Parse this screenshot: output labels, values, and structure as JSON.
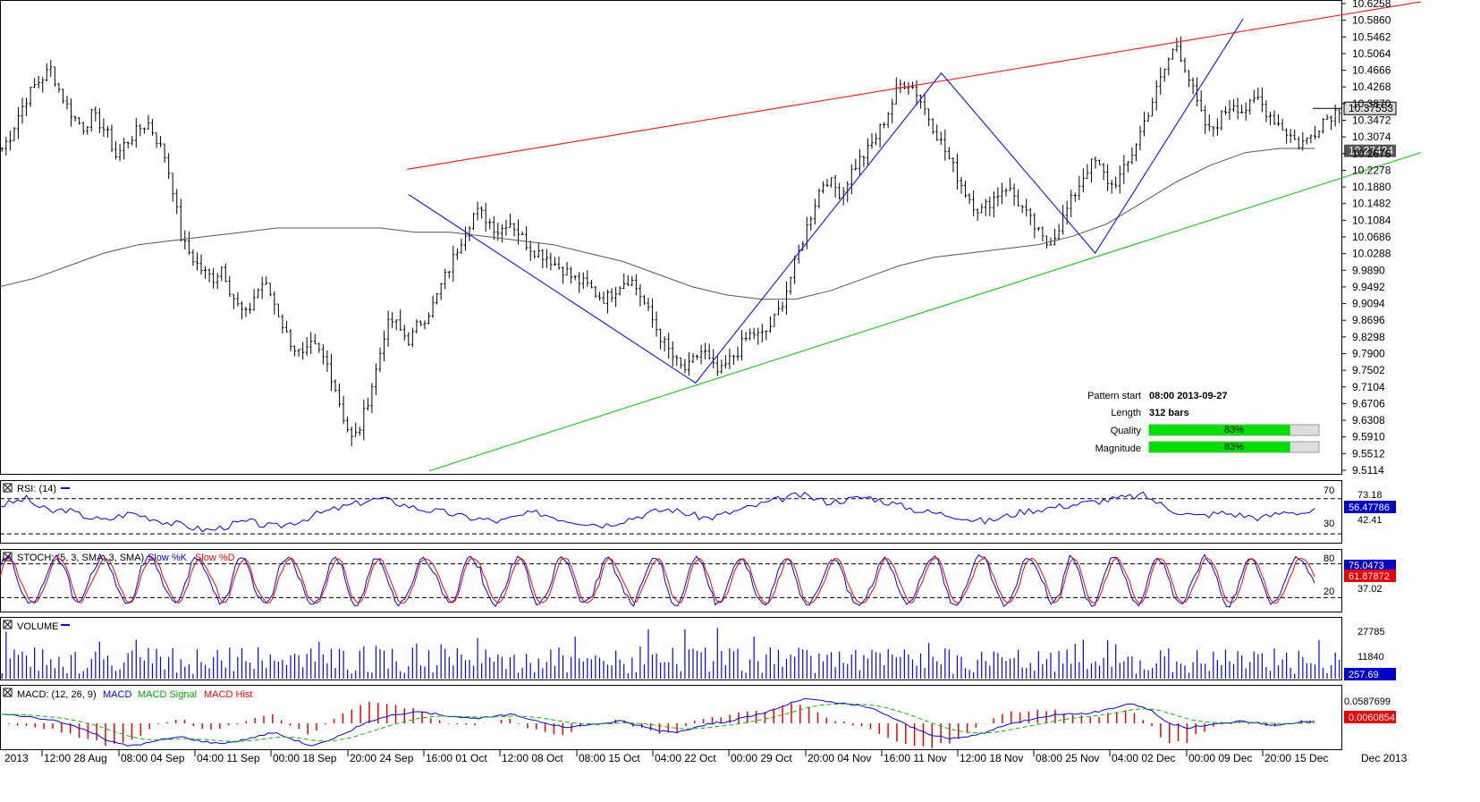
{
  "chart_data": {
    "type": "candlestick",
    "main": {
      "y_ticks": [
        "10.6258",
        "10.5860",
        "10.5462",
        "10.5064",
        "10.4666",
        "10.4268",
        "10.3870",
        "10.3472",
        "10.3074",
        "10.2676",
        "10.2278",
        "10.1880",
        "10.1482",
        "10.1084",
        "10.0686",
        "10.0288",
        "9.9890",
        "9.9492",
        "9.9094",
        "9.8696",
        "9.8298",
        "9.7900",
        "9.7502",
        "9.7104",
        "9.6706",
        "9.6308",
        "9.5910",
        "9.5512",
        "9.5114"
      ],
      "ylim": [
        9.5114,
        10.6258
      ],
      "current_price": "10.37553",
      "ma_value": "10.27424",
      "close_series": [
        10.28,
        10.31,
        10.36,
        10.4,
        10.43,
        10.45,
        10.47,
        10.42,
        10.38,
        10.35,
        10.33,
        10.36,
        10.34,
        10.31,
        10.26,
        10.29,
        10.31,
        10.33,
        10.34,
        10.3,
        10.26,
        10.18,
        10.06,
        10.03,
        10.0,
        9.98,
        9.97,
        10.0,
        9.94,
        9.9,
        9.88,
        9.93,
        9.96,
        9.93,
        9.88,
        9.83,
        9.8,
        9.78,
        9.81,
        9.79,
        9.76,
        9.7,
        9.63,
        9.58,
        9.62,
        9.69,
        9.76,
        9.85,
        9.87,
        9.84,
        9.82,
        9.86,
        9.88,
        9.91,
        9.96,
        10.0,
        10.05,
        10.09,
        10.13,
        10.12,
        10.1,
        10.08,
        10.11,
        10.09,
        10.06,
        10.04,
        10.03,
        10.02,
        10.0,
        9.99,
        9.97,
        9.96,
        9.95,
        9.93,
        9.92,
        9.94,
        9.96,
        9.97,
        9.94,
        9.9,
        9.86,
        9.82,
        9.79,
        9.76,
        9.75,
        9.78,
        9.8,
        9.76,
        9.74,
        9.77,
        9.79,
        9.82,
        9.84,
        9.83,
        9.85,
        9.88,
        9.93,
        9.99,
        10.05,
        10.11,
        10.17,
        10.21,
        10.19,
        10.17,
        10.22,
        10.25,
        10.27,
        10.3,
        10.34,
        10.38,
        10.43,
        10.44,
        10.42,
        10.38,
        10.34,
        10.3,
        10.26,
        10.22,
        10.18,
        10.15,
        10.13,
        10.15,
        10.17,
        10.19,
        10.17,
        10.14,
        10.11,
        10.08,
        10.05,
        10.07,
        10.11,
        10.15,
        10.19,
        10.23,
        10.25,
        10.22,
        10.19,
        10.21,
        10.24,
        10.29,
        10.34,
        10.39,
        10.44,
        10.49,
        10.53,
        10.48,
        10.42,
        10.36,
        10.32,
        10.34,
        10.37,
        10.39,
        10.37,
        10.38,
        10.4,
        10.37,
        10.35,
        10.33,
        10.31,
        10.29,
        10.3,
        10.32,
        10.35,
        10.36,
        10.37553
      ],
      "ma_series": [
        9.95,
        9.97,
        10.0,
        10.03,
        10.05,
        10.06,
        10.07,
        10.08,
        10.09,
        10.09,
        10.09,
        10.09,
        10.08,
        10.08,
        10.07,
        10.06,
        10.05,
        10.03,
        10.01,
        9.98,
        9.95,
        9.93,
        9.92,
        9.92,
        9.94,
        9.97,
        10.0,
        10.02,
        10.03,
        10.04,
        10.05,
        10.07,
        10.1,
        10.15,
        10.2,
        10.24,
        10.27,
        10.28,
        10.28
      ],
      "pattern_upper": {
        "x": [
          0.275,
          0.96
        ],
        "y": [
          10.23,
          10.63
        ]
      },
      "pattern_lower": {
        "x": [
          0.29,
          0.96
        ],
        "y": [
          9.51,
          10.27
        ]
      },
      "zigzag": [
        [
          0.276,
          10.17
        ],
        [
          0.47,
          9.72
        ],
        [
          0.636,
          10.46
        ],
        [
          0.74,
          10.03
        ],
        [
          0.84,
          10.59
        ]
      ],
      "x_ticks": [
        "2013",
        "12:00 28 Aug",
        "08:00 04 Sep",
        "04:00 11 Sep",
        "00:00 18 Sep",
        "20:00 24 Sep",
        "16:00 01 Oct",
        "12:00 08 Oct",
        "08:00 15 Oct",
        "04:00 22 Oct",
        "00:00 29 Oct",
        "20:00 04 Nov",
        "16:00 11 Nov",
        "12:00 18 Nov",
        "08:00 25 Nov",
        "04:00 02 Dec",
        "00:00 09 Dec",
        "20:00 15 Dec",
        "Dec 2013"
      ]
    },
    "pattern_info": {
      "pattern_start_label": "Pattern start",
      "pattern_start_value": "08:00 2013-09-27",
      "length_label": "Length",
      "length_value": "312 bars",
      "quality_label": "Quality",
      "quality_value": "83%",
      "quality_fraction": 0.83,
      "magnitude_label": "Magnitude",
      "magnitude_value": "83%",
      "magnitude_fraction": 0.83
    },
    "rsi": {
      "title": "RSI: (14)",
      "levels": [
        "70",
        "30"
      ],
      "ticks": [
        "73.18",
        "42.41"
      ],
      "current": "56.47786",
      "series": [
        62,
        66,
        70,
        60,
        55,
        58,
        52,
        48,
        45,
        50,
        54,
        50,
        46,
        42,
        40,
        36,
        34,
        38,
        42,
        44,
        40,
        38,
        42,
        46,
        52,
        56,
        60,
        64,
        68,
        70,
        66,
        62,
        58,
        56,
        54,
        50,
        48,
        46,
        44,
        48,
        52,
        54,
        50,
        46,
        44,
        42,
        40,
        44,
        48,
        52,
        56,
        58,
        54,
        50,
        48,
        52,
        56,
        60,
        64,
        68,
        72,
        74,
        70,
        66,
        68,
        70,
        72,
        68,
        64,
        60,
        56,
        54,
        52,
        50,
        46,
        44,
        48,
        52,
        56,
        58,
        60,
        62,
        64,
        66,
        68,
        70,
        72,
        74,
        66,
        58,
        54,
        50,
        52,
        54,
        52,
        50,
        48,
        52,
        56,
        54,
        56
      ]
    },
    "stoch": {
      "title": "STOCH: (5, 3, SMA, 3, SMA)",
      "k_label": "Slow %K",
      "d_label": "Slow %D",
      "levels": [
        "80",
        "20"
      ],
      "ticks": [
        "37.02"
      ],
      "current_k": "75.0473",
      "current_d": "61.87872"
    },
    "volume": {
      "title": "VOLUME",
      "ticks": [
        "27785",
        "11840"
      ],
      "current": "257.69"
    },
    "macd": {
      "title": "MACD: (12, 26, 9)",
      "macd_label": "MACD",
      "signal_label": "MACD Signal",
      "hist_label": "MACD Hist",
      "ticks": [
        "0.0587699",
        "0.0060854"
      ],
      "current": "0.0060854",
      "series": [
        0.02,
        0.018,
        0.012,
        0.005,
        -0.005,
        -0.02,
        -0.04,
        -0.05,
        -0.045,
        -0.035,
        -0.03,
        -0.04,
        -0.045,
        -0.04,
        -0.03,
        -0.02,
        -0.035,
        -0.05,
        -0.04,
        -0.02,
        0.0,
        0.015,
        0.02,
        0.025,
        0.02,
        0.015,
        0.01,
        0.015,
        0.02,
        0.01,
        0.0,
        -0.01,
        -0.005,
        0.0,
        0.005,
        -0.005,
        -0.015,
        -0.02,
        -0.01,
        0.0,
        0.005,
        0.015,
        0.025,
        0.04,
        0.055,
        0.05,
        0.045,
        0.04,
        0.03,
        0.01,
        -0.01,
        -0.025,
        -0.035,
        -0.03,
        -0.02,
        -0.005,
        0.005,
        0.015,
        0.02,
        0.02,
        0.025,
        0.035,
        0.045,
        0.03,
        0.0,
        -0.01,
        -0.005,
        0.0,
        0.005,
        0.0,
        -0.005,
        0.002,
        0.006
      ]
    }
  }
}
